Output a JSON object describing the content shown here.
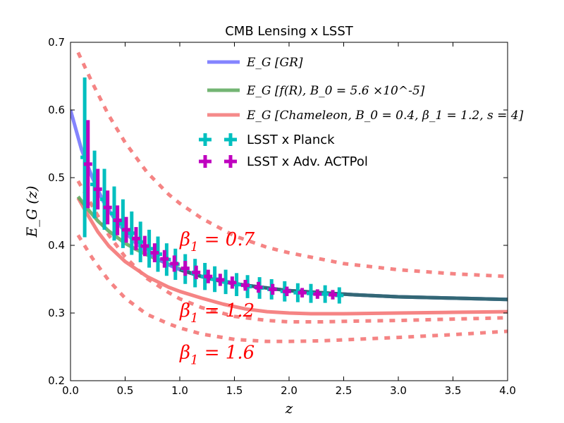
{
  "chart_data": {
    "type": "line",
    "title": "CMB Lensing x LSST",
    "xlabel": "z",
    "ylabel": "E_G (z)",
    "xlim": [
      0.0,
      4.0
    ],
    "ylim": [
      0.2,
      0.7
    ],
    "x_ticks": [
      "0.0",
      "0.5",
      "1.0",
      "1.5",
      "2.0",
      "2.5",
      "3.0",
      "3.5",
      "4.0"
    ],
    "y_ticks": [
      "0.2",
      "0.3",
      "0.4",
      "0.5",
      "0.6",
      "0.7"
    ],
    "colors": {
      "gr": "#6f6fff",
      "fr": "#5aa85a",
      "chameleon": "#f47d7d",
      "planck": "#00bfbf",
      "actpol": "#bf00bf",
      "annotation": "#ff0000"
    },
    "legend": {
      "gr": "E_G [GR]",
      "fr": "E_G [f(R), B_0 = 5.6 ×10^-5]",
      "chameleon": "E_G [Chameleon, B_0 = 0.4, β_1 = 1.2, s = 4]",
      "planck": "LSST x Planck",
      "actpol": "LSST x Adv. ACTPol"
    },
    "series": [
      {
        "name": "E_G [GR]",
        "style": "solid",
        "x": [
          0.0,
          0.1,
          0.2,
          0.3,
          0.4,
          0.5,
          0.6,
          0.7,
          0.8,
          0.9,
          1.0,
          1.2,
          1.4,
          1.6,
          1.8,
          2.0,
          2.2,
          2.4,
          2.6,
          3.0,
          3.5,
          4.0
        ],
        "y": [
          0.6,
          0.542,
          0.5,
          0.465,
          0.44,
          0.42,
          0.403,
          0.39,
          0.38,
          0.371,
          0.364,
          0.354,
          0.346,
          0.341,
          0.337,
          0.333,
          0.331,
          0.329,
          0.327,
          0.324,
          0.322,
          0.32
        ]
      },
      {
        "name": "E_G [f(R), B_0 = 5.6 ×10^-5]",
        "style": "solid",
        "x": [
          0.07,
          0.15,
          0.25,
          0.35,
          0.5,
          0.6,
          0.7,
          0.8,
          0.9,
          1.0,
          1.2,
          1.4,
          1.6,
          1.8,
          2.0,
          2.2,
          2.4,
          2.6,
          3.0,
          3.5,
          4.0
        ],
        "y": [
          0.472,
          0.455,
          0.436,
          0.421,
          0.403,
          0.394,
          0.386,
          0.379,
          0.372,
          0.365,
          0.354,
          0.346,
          0.341,
          0.337,
          0.333,
          0.331,
          0.329,
          0.327,
          0.324,
          0.322,
          0.32
        ]
      },
      {
        "name": "E_G [Chameleon, B_0 = 0.4, β_1 = 1.2, s = 4]",
        "style": "solid",
        "x": [
          0.07,
          0.15,
          0.25,
          0.35,
          0.5,
          0.7,
          0.9,
          1.0,
          1.2,
          1.4,
          1.6,
          1.8,
          2.0,
          2.2,
          2.5,
          3.0,
          3.5,
          4.0
        ],
        "y": [
          0.47,
          0.447,
          0.42,
          0.399,
          0.376,
          0.354,
          0.338,
          0.332,
          0.322,
          0.313,
          0.306,
          0.302,
          0.3,
          0.299,
          0.299,
          0.3,
          0.301,
          0.302
        ]
      },
      {
        "name": "β_1 = 0.7",
        "style": "dashed",
        "x": [
          0.07,
          0.2,
          0.35,
          0.5,
          0.7,
          0.9,
          1.0,
          1.2,
          1.5,
          1.8,
          2.0,
          2.5,
          3.0,
          3.5,
          4.0
        ],
        "y": [
          0.685,
          0.64,
          0.592,
          0.552,
          0.508,
          0.475,
          0.462,
          0.44,
          0.414,
          0.397,
          0.389,
          0.373,
          0.364,
          0.358,
          0.354
        ]
      },
      {
        "name": "β_1 = 1.2",
        "style": "dashed",
        "x": [
          0.07,
          0.2,
          0.35,
          0.5,
          0.7,
          0.9,
          1.0,
          1.2,
          1.5,
          1.8,
          2.0,
          2.3,
          2.6,
          3.0,
          3.5,
          4.0
        ],
        "y": [
          0.495,
          0.458,
          0.415,
          0.383,
          0.351,
          0.33,
          0.321,
          0.308,
          0.295,
          0.289,
          0.287,
          0.287,
          0.288,
          0.289,
          0.291,
          0.293
        ]
      },
      {
        "name": "β_1 = 1.6",
        "style": "dashed",
        "x": [
          0.07,
          0.2,
          0.35,
          0.5,
          0.7,
          0.9,
          1.0,
          1.2,
          1.5,
          1.8,
          2.0,
          2.3,
          2.6,
          3.0,
          3.5,
          4.0
        ],
        "y": [
          0.415,
          0.381,
          0.348,
          0.322,
          0.298,
          0.284,
          0.278,
          0.269,
          0.261,
          0.258,
          0.258,
          0.259,
          0.261,
          0.264,
          0.268,
          0.273
        ]
      }
    ],
    "errorbars": [
      {
        "name": "LSST x Planck",
        "x": [
          0.13,
          0.22,
          0.31,
          0.4,
          0.48,
          0.56,
          0.64,
          0.72,
          0.8,
          0.88,
          0.96,
          1.05,
          1.14,
          1.23,
          1.32,
          1.42,
          1.52,
          1.62,
          1.73,
          1.84,
          1.96,
          2.08,
          2.2,
          2.33,
          2.46
        ],
        "y": [
          0.53,
          0.49,
          0.468,
          0.447,
          0.432,
          0.418,
          0.405,
          0.395,
          0.387,
          0.379,
          0.372,
          0.365,
          0.359,
          0.354,
          0.35,
          0.346,
          0.342,
          0.339,
          0.337,
          0.335,
          0.332,
          0.33,
          0.329,
          0.328,
          0.326
        ],
        "yerr": [
          0.118,
          0.05,
          0.045,
          0.04,
          0.036,
          0.032,
          0.03,
          0.028,
          0.026,
          0.024,
          0.023,
          0.022,
          0.021,
          0.02,
          0.019,
          0.018,
          0.017,
          0.017,
          0.016,
          0.015,
          0.015,
          0.014,
          0.014,
          0.013,
          0.012
        ]
      },
      {
        "name": "LSST x Adv. ACTPol",
        "x": [
          0.16,
          0.25,
          0.34,
          0.43,
          0.51,
          0.6,
          0.68,
          0.77,
          0.86,
          0.95,
          1.05,
          1.15,
          1.26,
          1.37,
          1.48,
          1.6,
          1.72,
          1.85,
          1.98,
          2.12,
          2.26,
          2.4
        ],
        "y": [
          0.52,
          0.483,
          0.456,
          0.437,
          0.423,
          0.41,
          0.399,
          0.389,
          0.38,
          0.373,
          0.366,
          0.36,
          0.354,
          0.349,
          0.345,
          0.341,
          0.338,
          0.335,
          0.332,
          0.33,
          0.328,
          0.327
        ],
        "yerr": [
          0.065,
          0.03,
          0.025,
          0.022,
          0.019,
          0.017,
          0.015,
          0.014,
          0.013,
          0.012,
          0.011,
          0.01,
          0.01,
          0.009,
          0.009,
          0.008,
          0.008,
          0.008,
          0.007,
          0.007,
          0.007,
          0.007
        ]
      }
    ],
    "annotations": [
      {
        "text_base": "β",
        "text_sub": "1",
        "text_rest": " = 0.7",
        "x": 1.0,
        "y": 0.4
      },
      {
        "text_base": "β",
        "text_sub": "1",
        "text_rest": " = 1.2",
        "x": 1.0,
        "y": 0.295
      },
      {
        "text_base": "β",
        "text_sub": "1",
        "text_rest": " = 1.6",
        "x": 1.0,
        "y": 0.233
      }
    ],
    "legend_placement": "top-right",
    "grid": false
  }
}
